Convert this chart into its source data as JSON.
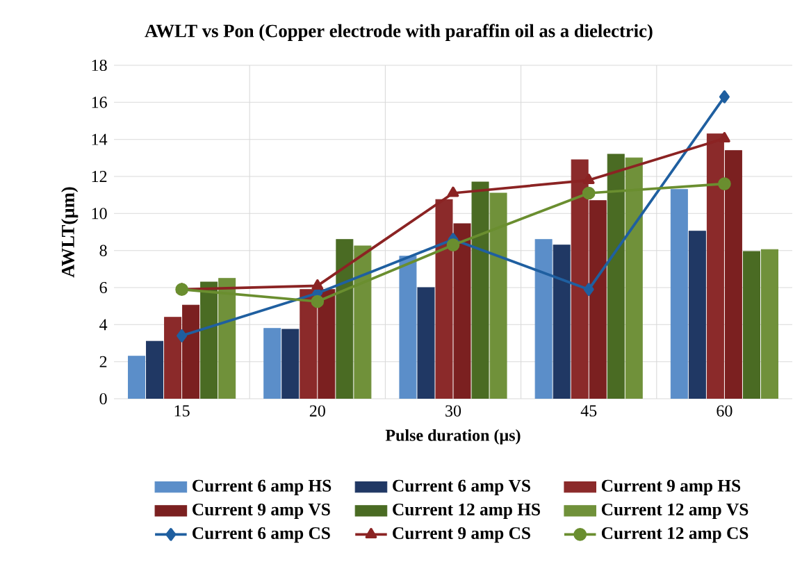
{
  "chart_data": {
    "type": "bar",
    "title": "AWLT vs Pon (Copper electrode with paraffin oil as a dielectric)",
    "xlabel": "Pulse duration (µs)",
    "ylabel": "AWLT(µm)",
    "categories": [
      "15",
      "20",
      "30",
      "45",
      "60"
    ],
    "ylim": [
      0,
      18
    ],
    "yticks": [
      0,
      2,
      4,
      6,
      8,
      10,
      12,
      14,
      16,
      18
    ],
    "grid": true,
    "legend": "bottom",
    "series": [
      {
        "name": "Current 6 amp HS",
        "color": "#5b8ec9",
        "values": [
          2.3,
          3.8,
          7.7,
          8.6,
          11.3
        ]
      },
      {
        "name": "Current 6 amp VS",
        "color": "#203864",
        "values": [
          3.1,
          3.75,
          6.0,
          8.3,
          9.05
        ]
      },
      {
        "name": "Current 9 amp HS",
        "color": "#8b2a2a",
        "values": [
          4.4,
          5.9,
          10.75,
          12.9,
          14.3
        ]
      },
      {
        "name": "Current 9 amp VS",
        "color": "#7b2020",
        "values": [
          5.05,
          5.9,
          9.45,
          10.7,
          13.4
        ]
      },
      {
        "name": "Current 12 amp HS",
        "color": "#4a6b23",
        "values": [
          6.3,
          8.6,
          11.7,
          13.2,
          7.95
        ]
      },
      {
        "name": "Current 12 amp VS",
        "color": "#70913a",
        "values": [
          6.5,
          8.25,
          11.1,
          13.0,
          8.05
        ]
      },
      {
        "name": "Current 6 amp CS",
        "type": "line",
        "marker": "diamond",
        "line_style": "solid",
        "color": "#1f5fa0",
        "values": [
          3.4,
          5.7,
          8.6,
          5.9,
          16.3
        ]
      },
      {
        "name": "Current 9 amp CS",
        "type": "line",
        "marker": "triangle",
        "line_style": "solid",
        "color": "#8b2323",
        "values": [
          5.9,
          6.1,
          11.1,
          11.8,
          14.05
        ]
      },
      {
        "name": "Current 12 amp CS",
        "type": "line",
        "marker": "circle",
        "line_style": "solid",
        "color": "#6a8e2f",
        "values": [
          5.9,
          5.25,
          8.3,
          11.1,
          11.6
        ]
      }
    ]
  }
}
